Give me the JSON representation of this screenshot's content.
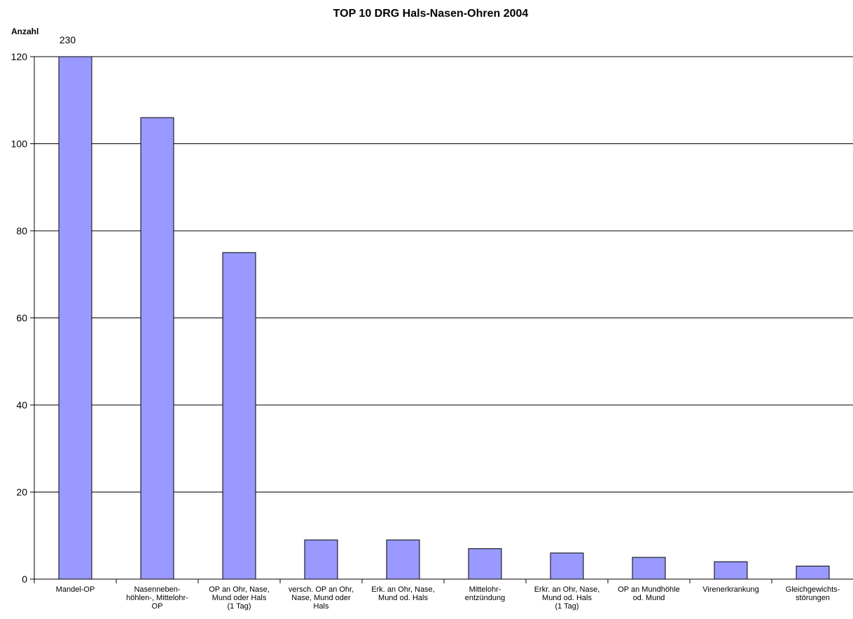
{
  "chart_data": {
    "type": "bar",
    "title": "TOP 10 DRG Hals-Nasen-Ohren 2004",
    "ylabel": "Anzahl",
    "xlabel": "",
    "ylim": [
      0,
      120
    ],
    "yticks": [
      0,
      20,
      40,
      60,
      80,
      100,
      120
    ],
    "grid": "horizontal",
    "legend": "none",
    "bar_color": "#9999ff",
    "categories": [
      [
        "Mandel-OP"
      ],
      [
        "Nasenneben-",
        "höhlen-, Mittelohr-",
        "OP"
      ],
      [
        "OP an Ohr, Nase,",
        "Mund oder Hals",
        "(1 Tag)"
      ],
      [
        "versch. OP an Ohr,",
        "Nase, Mund oder",
        "Hals"
      ],
      [
        "Erk. an Ohr, Nase,",
        "Mund od. Hals"
      ],
      [
        "Mittelohr-",
        "entzündung"
      ],
      [
        "Erkr. an Ohr, Nase,",
        "Mund od. Hals",
        "(1 Tag)"
      ],
      [
        "OP an Mundhöhle",
        "od. Mund"
      ],
      [
        "Virenerkrankung"
      ],
      [
        "Gleichgewichts-",
        "störungen"
      ]
    ],
    "values": [
      230,
      106,
      75,
      9,
      9,
      7,
      6,
      5,
      4,
      3
    ],
    "data_labels": [
      "230",
      "",
      "",
      "",
      "",
      "",
      "",
      "",
      "",
      ""
    ]
  }
}
